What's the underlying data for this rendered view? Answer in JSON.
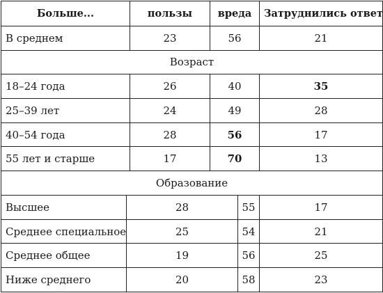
{
  "headers": {
    "label": "Больше...",
    "benefit": "пользы",
    "harm": "вреда",
    "undecided": "Затруднились ответить"
  },
  "average": {
    "label": "В среднем",
    "benefit": "23",
    "harm": "56",
    "undecided": "21"
  },
  "age": {
    "title": "Возраст",
    "rows": [
      {
        "label": "18–24 года",
        "benefit": "26",
        "harm": "40",
        "undecided": "35"
      },
      {
        "label": "25–39 лет",
        "benefit": "24",
        "harm": "49",
        "undecided": "28"
      },
      {
        "label": "40–54 года",
        "benefit": "28",
        "harm": "56",
        "undecided": "17"
      },
      {
        "label": "55 лет и старше",
        "benefit": "17",
        "harm": "70",
        "undecided": "13"
      }
    ]
  },
  "education": {
    "title": "Образование",
    "rows": [
      {
        "label": "Высшее",
        "benefit": "28",
        "harm": "55",
        "undecided": "17"
      },
      {
        "label": "Среднее специальное",
        "benefit": "25",
        "harm": "54",
        "undecided": "21"
      },
      {
        "label": "Среднее общее",
        "benefit": "19",
        "harm": "56",
        "undecided": "25"
      },
      {
        "label": "Ниже среднего",
        "benefit": "20",
        "harm": "58",
        "undecided": "23"
      }
    ]
  }
}
